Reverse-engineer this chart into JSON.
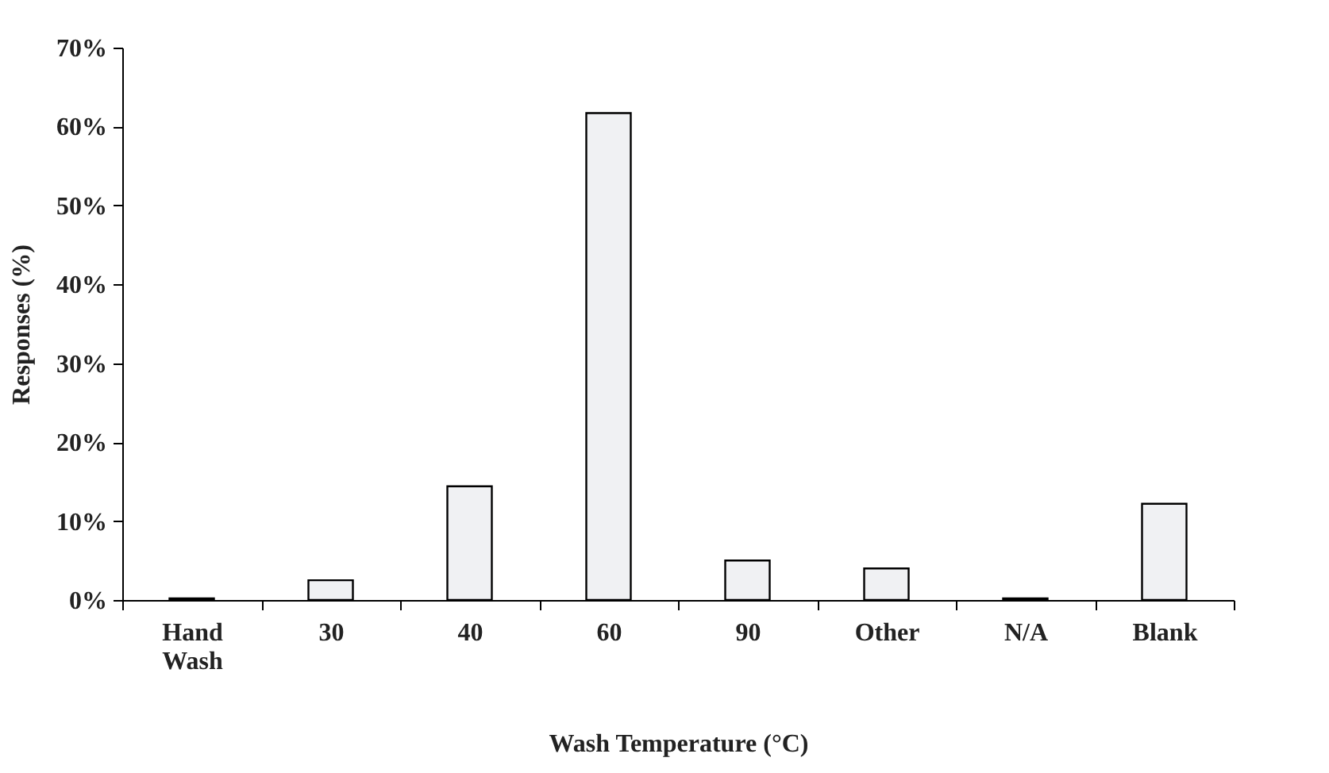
{
  "chart_data": {
    "type": "bar",
    "xlabel": "Wash Temperature (°C)",
    "ylabel": "Responses (%)",
    "categories": [
      "Hand Wash",
      "30",
      "40",
      "60",
      "90",
      "Other",
      "N/A",
      "Blank"
    ],
    "values": [
      0.2,
      2.5,
      14.4,
      61.7,
      5.0,
      4.0,
      0.2,
      12.2
    ],
    "color": "#f0f1f3",
    "ylim": [
      0,
      70
    ],
    "yticks": [
      {
        "value": 0,
        "label": "0%"
      },
      {
        "value": 10,
        "label": "10%"
      },
      {
        "value": 20,
        "label": "20%"
      },
      {
        "value": 30,
        "label": "30%"
      },
      {
        "value": 40,
        "label": "40%"
      },
      {
        "value": 50,
        "label": "50%"
      },
      {
        "value": 60,
        "label": "60%"
      },
      {
        "value": 70,
        "label": "70%"
      }
    ],
    "grid": false
  }
}
